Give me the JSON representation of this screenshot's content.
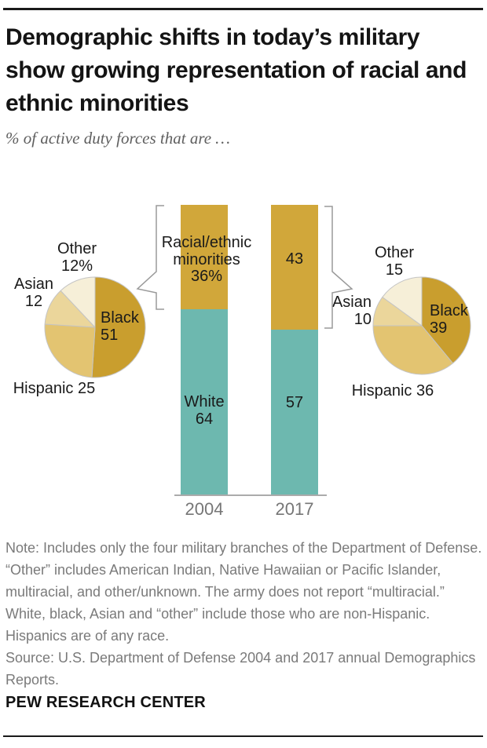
{
  "header": {
    "title": "Demographic shifts in today’s military show growing representation of racial and ethnic minorities",
    "subtitle": "% of active duty forces that are …"
  },
  "chart_data": [
    {
      "type": "bar",
      "subtype": "stacked-column",
      "categories": [
        "2004",
        "2017"
      ],
      "series": [
        {
          "name": "White",
          "values": [
            64,
            57
          ],
          "color": "#6db8af"
        },
        {
          "name": "Racial/ethnic minorities",
          "values": [
            36,
            43
          ],
          "color": "#d1a73a"
        }
      ],
      "ylim": [
        0,
        100
      ],
      "grid": "off",
      "axis_color": "#ababab"
    },
    {
      "type": "pie",
      "year": "2004",
      "group_label": "Racial/ethnic minorities 36%",
      "start_angle_deg": 0,
      "direction": "clockwise",
      "slices": [
        {
          "label": "Black",
          "value": 51,
          "color": "#c99e2e"
        },
        {
          "label": "Hispanic",
          "value": 25,
          "color": "#e3c471"
        },
        {
          "label": "Asian",
          "value": 12,
          "color": "#ebd69b"
        },
        {
          "label": "Other",
          "value": 12,
          "color": "#f6efd8"
        }
      ]
    },
    {
      "type": "pie",
      "year": "2017",
      "group_label": "43",
      "start_angle_deg": 0,
      "direction": "clockwise",
      "slices": [
        {
          "label": "Black",
          "value": 39,
          "color": "#c99e2e"
        },
        {
          "label": "Hispanic",
          "value": 36,
          "color": "#e3c471"
        },
        {
          "label": "Asian",
          "value": 10,
          "color": "#ebd69b"
        },
        {
          "label": "Other",
          "value": 15,
          "color": "#f6efd8"
        }
      ]
    }
  ],
  "labels": {
    "bar2004_minorities": "Racial/ethnic\nminorities\n36%",
    "bar2004_white": "White\n64",
    "bar2017_minorities": "43",
    "bar2017_white": "57",
    "pie2004": {
      "other": "Other\n12%",
      "asian": "Asian\n12",
      "black": "Black\n51",
      "hispanic": "Hispanic 25"
    },
    "pie2017": {
      "other": "Other\n15",
      "asian": "Asian\n10",
      "black": "Black\n39",
      "hispanic": "Hispanic 36"
    }
  },
  "note": {
    "note_text": "Note: Includes only the four military branches of the Department of Defense. “Other” includes American Indian, Native Hawaiian or Pacific Islander, multiracial, and other/unknown. The army does not report “multiracial.” White, black, Asian and “other” include those who are non-Hispanic. Hispanics are of any race.",
    "source_text": "Source: U.S. Department of Defense 2004 and 2017 annual Demographics Reports."
  },
  "footer": {
    "brand": "PEW RESEARCH CENTER"
  },
  "palette": {
    "gold_bar": "#d1a73a",
    "gold_black_slice": "#c99e2e",
    "tan_hispanic": "#e3c471",
    "light_asian": "#ebd69b",
    "cream_other": "#f6efd8",
    "teal_white": "#6db8af",
    "axis_gray": "#ababab",
    "note_gray": "#7a7a7a"
  }
}
